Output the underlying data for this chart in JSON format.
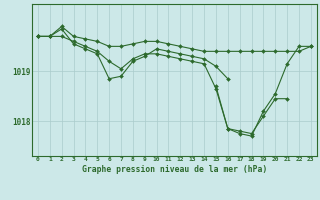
{
  "title": "Graphe pression niveau de la mer (hPa)",
  "line_color": "#2d6a2d",
  "background_color": "#cce8e8",
  "grid_color": "#aacccc",
  "hours": [
    0,
    1,
    2,
    3,
    4,
    5,
    6,
    7,
    8,
    9,
    10,
    11,
    12,
    13,
    14,
    15,
    16,
    17,
    18,
    19,
    20,
    21,
    22,
    23
  ],
  "series1": [
    1019.7,
    1019.7,
    1019.9,
    1019.7,
    1019.65,
    1019.6,
    1019.5,
    1019.5,
    1019.55,
    1019.6,
    1019.6,
    1019.55,
    1019.5,
    1019.45,
    1019.4,
    1019.4,
    1019.4,
    1019.4,
    1019.4,
    1019.4,
    1019.4,
    1019.4,
    1019.4,
    1019.5
  ],
  "series2": [
    1019.7,
    1019.7,
    1019.85,
    1019.55,
    1019.45,
    1019.35,
    1018.85,
    1018.9,
    1019.2,
    1019.3,
    1019.45,
    1019.4,
    1019.35,
    1019.3,
    1019.25,
    1019.1,
    1018.85,
    null,
    null,
    null,
    null,
    null,
    null,
    null
  ],
  "series3": [
    1019.7,
    1019.7,
    1019.7,
    1019.6,
    1019.5,
    1019.4,
    1019.2,
    1019.05,
    1019.25,
    1019.35,
    1019.35,
    1019.3,
    1019.25,
    1019.2,
    1019.15,
    1018.65,
    1017.85,
    1017.75,
    1017.7,
    1018.2,
    1018.55,
    1019.15,
    1019.5,
    1019.5
  ],
  "series4": [
    null,
    null,
    null,
    null,
    null,
    null,
    null,
    null,
    null,
    null,
    null,
    null,
    null,
    null,
    null,
    1018.7,
    1017.85,
    1017.8,
    1017.75,
    1018.1,
    1018.45,
    1018.45,
    null,
    null
  ],
  "ytick_vals": [
    1018.0,
    1019.0
  ],
  "ytick_labels": [
    "1018",
    "1019"
  ],
  "ylim": [
    1017.3,
    1020.35
  ],
  "xlim": [
    -0.5,
    23.5
  ]
}
